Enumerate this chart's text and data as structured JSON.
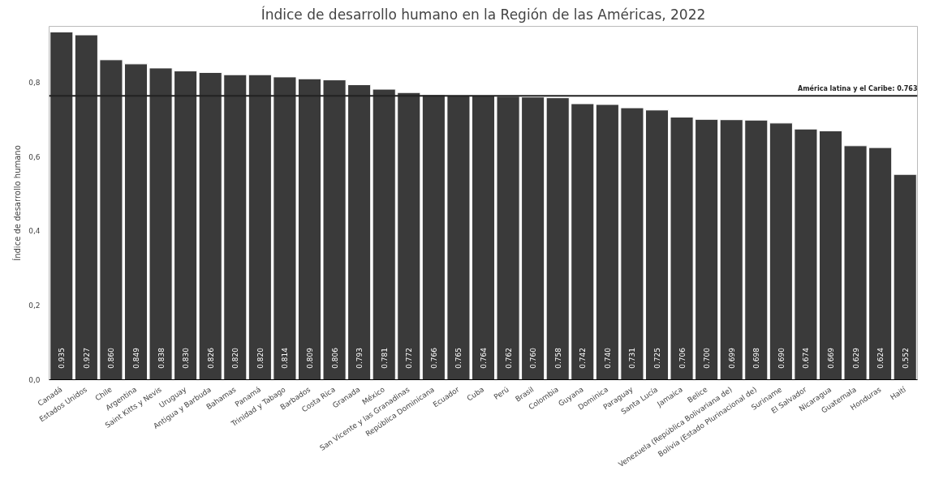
{
  "chart_data": {
    "type": "bar",
    "title": "Índice de desarrollo humano en la Región de las Américas, 2022",
    "ylabel": "Índice de desarrollo humano",
    "categories": [
      "Canadá",
      "Estados Unidos",
      "Chile",
      "Argentina",
      "Saint Kitts y Nevis",
      "Uruguay",
      "Antigua y Barbuda",
      "Bahamas",
      "Panamá",
      "Trinidad y Tabago",
      "Barbados",
      "Costa Rica",
      "Granada",
      "México",
      "San Vicente y las Granadinas",
      "República Dominicana",
      "Ecuador",
      "Cuba",
      "Perú",
      "Brasil",
      "Colombia",
      "Guyana",
      "Dominica",
      "Paraguay",
      "Santa Lucía",
      "Jamaica",
      "Belice",
      "Venezuela (República Bolivariana de)",
      "Bolivia (Estado Plurinacional de)",
      "Suriname",
      "El Salvador",
      "Nicaragua",
      "Guatemala",
      "Honduras",
      "Haití"
    ],
    "values": [
      0.935,
      0.927,
      0.86,
      0.849,
      0.838,
      0.83,
      0.826,
      0.82,
      0.82,
      0.814,
      0.809,
      0.806,
      0.793,
      0.781,
      0.772,
      0.766,
      0.765,
      0.764,
      0.762,
      0.76,
      0.758,
      0.742,
      0.74,
      0.731,
      0.725,
      0.706,
      0.7,
      0.699,
      0.698,
      0.69,
      0.674,
      0.669,
      0.629,
      0.624,
      0.552
    ],
    "value_labels": [
      "0.935",
      "0.927",
      "0.860",
      "0.849",
      "0.838",
      "0.830",
      "0.826",
      "0.820",
      "0.820",
      "0.814",
      "0.809",
      "0.806",
      "0.793",
      "0.781",
      "0.772",
      "0.766",
      "0.765",
      "0.764",
      "0.762",
      "0.760",
      "0.758",
      "0.742",
      "0.740",
      "0.731",
      "0.725",
      "0.706",
      "0.700",
      "0.699",
      "0.698",
      "0.690",
      "0.674",
      "0.669",
      "0.629",
      "0.624",
      "0.552"
    ],
    "color": "#3a3a3a",
    "ylim": [
      0,
      0.95
    ],
    "yticks": [
      {
        "value": 0,
        "label": "0,0"
      },
      {
        "value": 0.2,
        "label": "0,2"
      },
      {
        "value": 0.4,
        "label": "0,4"
      },
      {
        "value": 0.6,
        "label": "0,6"
      },
      {
        "value": 0.8,
        "label": "0,8"
      }
    ],
    "ref_lines": [
      {
        "axis": "y",
        "value": 0.763,
        "label": "América latina y el Caribe: 0.763",
        "color": "#222222"
      }
    ],
    "grid": false
  }
}
